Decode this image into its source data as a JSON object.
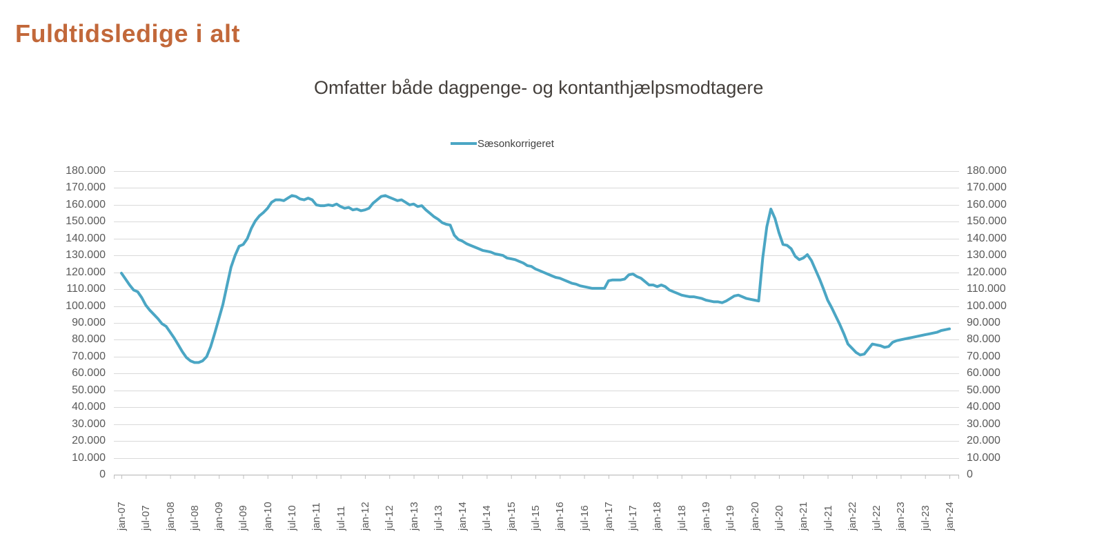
{
  "page": {
    "title": "Fuldtidsledige i alt",
    "title_color": "#C2683A"
  },
  "chart": {
    "subtitle": "Omfatter både dagpenge- og kontanthjælpsmodtagere",
    "legend": {
      "label": "Sæsonkorrigeret"
    },
    "colors": {
      "line": "#4BA6C4",
      "gridline": "#D9D9D9",
      "axis": "#BFBFBF",
      "tick_label": "#595959",
      "subtitle_text": "#443F3B"
    }
  },
  "chart_data": {
    "type": "line",
    "title": "Omfatter både dagpenge- og kontanthjælpsmodtagere",
    "xlabel": "",
    "ylabel": "",
    "ylim": [
      0,
      180000
    ],
    "grid": "horizontal",
    "legend_position": "top-center",
    "x_unit": "month",
    "x_range": [
      "jan-07",
      "jan-24"
    ],
    "x_tick_labels": [
      "jan-07",
      "jul-07",
      "jan-08",
      "jul-08",
      "jan-09",
      "jul-09",
      "jan-10",
      "jul-10",
      "jan-11",
      "jul-11",
      "jan-12",
      "jul-12",
      "jan-13",
      "jul-13",
      "jan-14",
      "jul-14",
      "jan-15",
      "jul-15",
      "jan-16",
      "jul-16",
      "jan-17",
      "jul-17",
      "jan-18",
      "jul-18",
      "jan-19",
      "jul-19",
      "jan-20",
      "jul-20",
      "jan-21",
      "jul-21",
      "jan-22",
      "jul-22",
      "jan-23",
      "jul-23",
      "jan-24"
    ],
    "x_ticks_every_n_months": 6,
    "y_tick_labels": [
      "0",
      "10.000",
      "20.000",
      "30.000",
      "40.000",
      "50.000",
      "60.000",
      "70.000",
      "80.000",
      "90.000",
      "100.000",
      "110.000",
      "120.000",
      "130.000",
      "140.000",
      "150.000",
      "160.000",
      "170.000",
      "180.000"
    ],
    "y_tick_values": [
      0,
      10000,
      20000,
      30000,
      40000,
      50000,
      60000,
      70000,
      80000,
      90000,
      100000,
      110000,
      120000,
      130000,
      140000,
      150000,
      160000,
      170000,
      180000
    ],
    "series": [
      {
        "name": "Sæsonkorrigeret",
        "color": "#4BA6C4",
        "values": [
          119500,
          116000,
          112500,
          109500,
          108500,
          105000,
          100500,
          97500,
          95000,
          92500,
          89500,
          88000,
          84500,
          81000,
          77000,
          73000,
          69500,
          67500,
          66500,
          66500,
          67500,
          70000,
          76000,
          84000,
          92500,
          101000,
          112000,
          123000,
          130000,
          135500,
          136500,
          140000,
          146000,
          150500,
          153500,
          155500,
          158000,
          161500,
          163000,
          163000,
          162500,
          164000,
          165500,
          165000,
          163500,
          163000,
          164000,
          163000,
          160000,
          159500,
          159500,
          160000,
          159500,
          160500,
          159000,
          158000,
          158500,
          157000,
          157500,
          156500,
          157000,
          158000,
          161000,
          163000,
          165000,
          165500,
          164500,
          163500,
          162500,
          163000,
          161500,
          160000,
          160500,
          159000,
          159500,
          157000,
          155000,
          153000,
          151500,
          149500,
          148500,
          148000,
          142000,
          139500,
          138500,
          137000,
          136000,
          135000,
          134000,
          133000,
          132500,
          132000,
          131000,
          130500,
          130000,
          128500,
          128000,
          127500,
          126500,
          125500,
          124000,
          123500,
          122000,
          121000,
          120000,
          119000,
          118000,
          117000,
          116500,
          115500,
          114500,
          113500,
          113000,
          112000,
          111500,
          111000,
          110500,
          110500,
          110500,
          110500,
          115000,
          115500,
          115500,
          115500,
          116000,
          118500,
          119000,
          117500,
          116500,
          114500,
          112500,
          112500,
          111500,
          112500,
          111500,
          109500,
          108500,
          107500,
          106500,
          106000,
          105500,
          105500,
          105000,
          104500,
          103500,
          103000,
          102500,
          102500,
          102000,
          103000,
          104500,
          106000,
          106500,
          105500,
          104500,
          104000,
          103500,
          103000,
          128500,
          147000,
          157500,
          152000,
          143500,
          136500,
          136000,
          134000,
          129500,
          127500,
          128500,
          130500,
          127000,
          121500,
          116000,
          110000,
          103500,
          99000,
          94000,
          89000,
          83500,
          77500,
          75000,
          72500,
          71000,
          71500,
          74500,
          77500,
          77000,
          76500,
          75500,
          76000,
          78500,
          79500,
          80000,
          80500,
          81000,
          81500,
          82000,
          82500,
          83000,
          83500,
          84000,
          84500,
          85500,
          86000,
          86500
        ]
      }
    ]
  }
}
